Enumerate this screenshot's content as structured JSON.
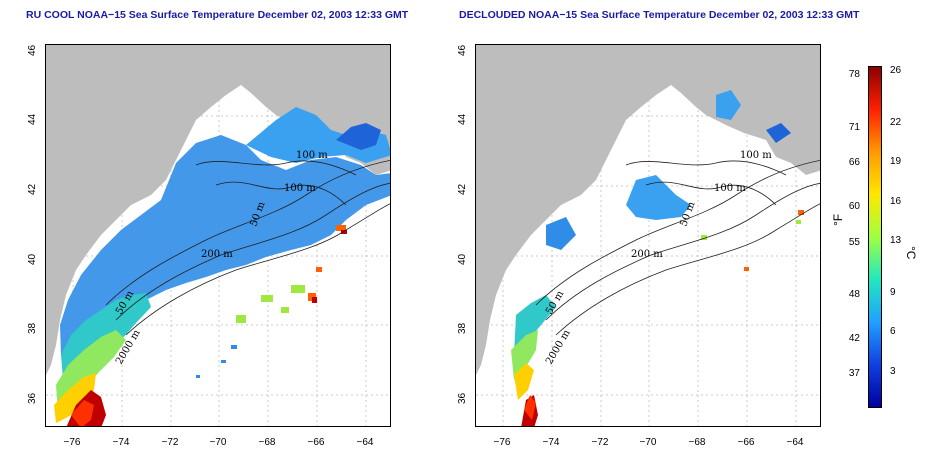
{
  "titles": {
    "left": "RU COOL NOAA−15 Sea Surface Temperature December 02, 2003 12:33 GMT",
    "right": "DECLOUDED NOAA−15 Sea Surface Temperature December 02, 2003 12:33 GMT"
  },
  "axes": {
    "x_ticks": [
      "−76",
      "−74",
      "−72",
      "−70",
      "−68",
      "−66",
      "−64"
    ],
    "y_ticks": [
      "46",
      "44",
      "42",
      "40",
      "38",
      "36"
    ]
  },
  "contour_labels": {
    "left": [
      "100 m",
      "100 m",
      "50 m",
      "200 m",
      "50 m",
      "2000 m"
    ],
    "right": [
      "100 m",
      "100 m",
      "50 m",
      "200 m",
      "50 m",
      "2000 m"
    ]
  },
  "colorbar": {
    "fahrenheit_label": "°F",
    "celsius_label": "°C",
    "fahrenheit_ticks": [
      "78",
      "71",
      "66",
      "60",
      "55",
      "48",
      "42",
      "37"
    ],
    "celsius_ticks": [
      "26",
      "22",
      "19",
      "16",
      "13",
      "9",
      "6",
      "3"
    ],
    "colors": [
      "#8b0000",
      "#ff2000",
      "#ff9a00",
      "#ffe700",
      "#a0ff40",
      "#20e8c0",
      "#20a0ff",
      "#1040e0",
      "#0000a0"
    ]
  },
  "colors": {
    "land": "#bdbdbd",
    "title": "#1a1aa6",
    "cold_water": "#2f8de8",
    "warm_water": "#c00000"
  }
}
